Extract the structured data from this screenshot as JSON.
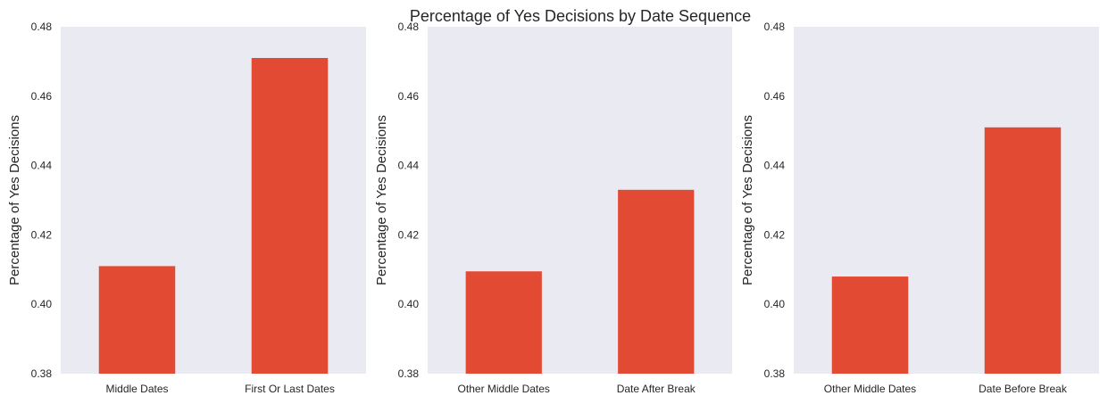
{
  "figure": {
    "title": "Percentage of Yes Decisions by Date Sequence"
  },
  "colors": {
    "bar": "#E24A33",
    "plot_background": "#EAEAF2",
    "text": "#262626"
  },
  "chart_data": [
    {
      "type": "bar",
      "title": "",
      "xlabel": "",
      "ylabel": "Percentage of Yes Decisions",
      "ylim": [
        0.38,
        0.48
      ],
      "yticks": [
        0.38,
        0.4,
        0.42,
        0.44,
        0.46,
        0.48
      ],
      "ytick_labels": [
        "0.38",
        "0.40",
        "0.42",
        "0.44",
        "0.46",
        "0.48"
      ],
      "categories": [
        "Middle Dates",
        "First Or Last Dates"
      ],
      "values": [
        0.411,
        0.471
      ],
      "grid": false
    },
    {
      "type": "bar",
      "title": "",
      "xlabel": "",
      "ylabel": "Percentage of Yes Decisions",
      "ylim": [
        0.38,
        0.48
      ],
      "yticks": [
        0.38,
        0.4,
        0.42,
        0.44,
        0.46,
        0.48
      ],
      "ytick_labels": [
        "0.38",
        "0.40",
        "0.42",
        "0.44",
        "0.46",
        "0.48"
      ],
      "categories": [
        "Other Middle Dates",
        "Date After Break"
      ],
      "values": [
        0.4095,
        0.433
      ],
      "grid": false
    },
    {
      "type": "bar",
      "title": "",
      "xlabel": "",
      "ylabel": "Percentage of Yes Decisions",
      "ylim": [
        0.38,
        0.48
      ],
      "yticks": [
        0.38,
        0.4,
        0.42,
        0.44,
        0.46,
        0.48
      ],
      "ytick_labels": [
        "0.38",
        "0.40",
        "0.42",
        "0.44",
        "0.46",
        "0.48"
      ],
      "categories": [
        "Other Middle Dates",
        "Date Before Break"
      ],
      "values": [
        0.408,
        0.451
      ],
      "grid": false
    }
  ]
}
